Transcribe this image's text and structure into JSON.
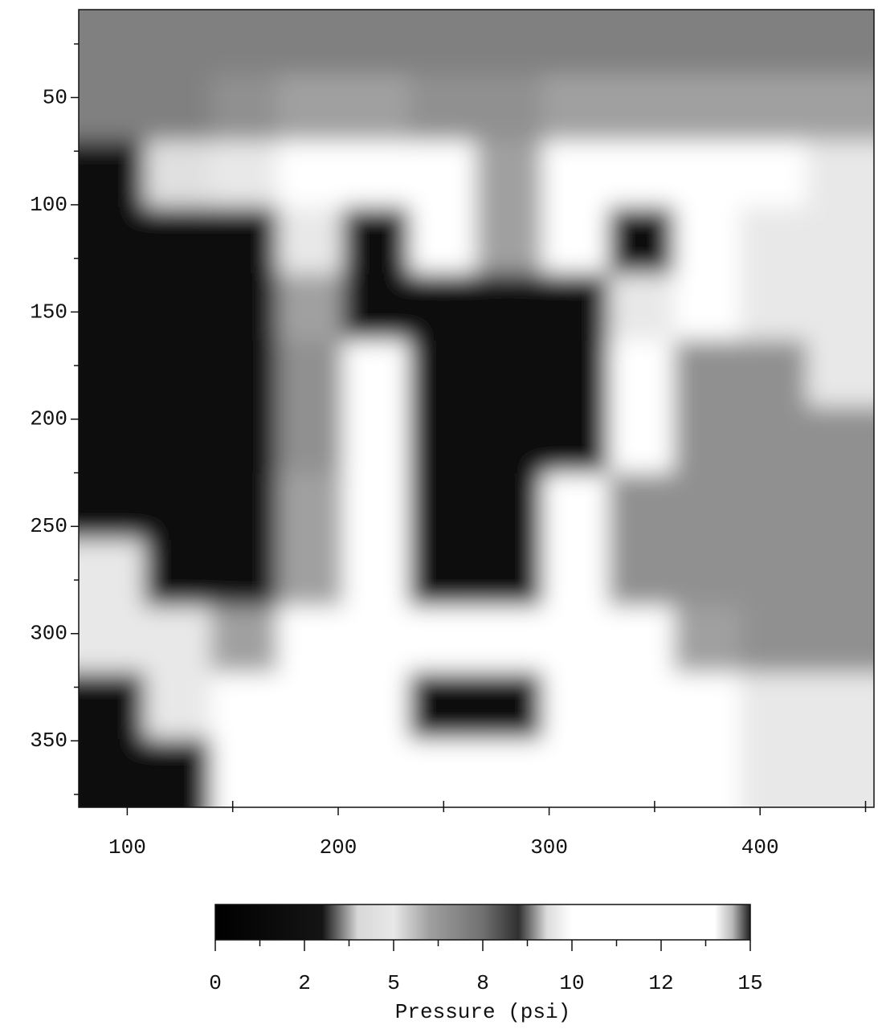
{
  "chart_data": {
    "type": "heatmap",
    "x": [
      93,
      124,
      156,
      187,
      218,
      250,
      281,
      313,
      344,
      375,
      407,
      438
    ],
    "y": [
      24,
      55,
      86,
      117,
      148,
      179,
      210,
      241,
      272,
      303,
      334,
      365
    ],
    "z": [
      [
        7,
        7,
        7,
        7,
        7,
        7,
        7,
        7,
        7,
        7,
        7,
        7
      ],
      [
        7,
        7,
        6.5,
        6,
        6,
        6.5,
        6.5,
        6,
        6,
        6,
        6,
        6
      ],
      [
        2,
        4.5,
        5,
        11,
        11,
        11,
        6,
        11,
        11,
        11,
        11,
        5
      ],
      [
        1,
        1,
        2,
        5,
        1.5,
        11,
        6,
        11,
        1.5,
        11,
        5,
        5
      ],
      [
        1,
        1,
        1.5,
        6,
        1,
        1,
        1,
        1,
        5,
        11,
        5,
        5
      ],
      [
        1,
        1,
        1,
        6.5,
        11,
        1,
        1,
        1,
        11,
        6.5,
        6.5,
        5
      ],
      [
        1,
        1,
        1,
        6.5,
        11,
        1,
        1,
        1,
        11,
        6.5,
        6.5,
        6.5
      ],
      [
        1.5,
        1,
        1.5,
        6,
        11,
        1,
        1,
        11,
        6.5,
        6.5,
        6.5,
        6.5
      ],
      [
        5,
        2,
        2,
        6,
        11,
        1,
        1,
        11,
        6.5,
        6.5,
        6.5,
        6.5
      ],
      [
        5,
        5,
        6,
        11,
        11,
        11,
        11,
        11,
        11,
        6,
        6.5,
        6.5
      ],
      [
        2,
        5,
        11,
        11,
        11,
        1.5,
        1.5,
        11,
        11,
        11,
        5,
        5
      ],
      [
        1,
        1.5,
        11,
        11,
        11,
        11,
        11,
        11,
        11,
        11,
        5,
        5
      ]
    ],
    "xlim": [
      77,
      454
    ],
    "ylim": [
      381,
      9
    ],
    "xticks": [
      100,
      200,
      300,
      400
    ],
    "xminor": [
      150,
      250,
      350,
      450
    ],
    "yticks": [
      50,
      100,
      150,
      200,
      250,
      300,
      350
    ],
    "yminor": [
      25,
      75,
      125,
      175,
      225,
      275,
      325,
      375
    ],
    "colormap": [
      {
        "value": 0,
        "color": "#000000"
      },
      {
        "value": 3,
        "color": "#141414"
      },
      {
        "value": 4,
        "color": "#d8d8d8"
      },
      {
        "value": 5,
        "color": "#e8e8e8"
      },
      {
        "value": 6,
        "color": "#a0a0a0"
      },
      {
        "value": 7.5,
        "color": "#707070"
      },
      {
        "value": 8.5,
        "color": "#303030"
      },
      {
        "value": 9.3,
        "color": "#dcdcdc"
      },
      {
        "value": 10,
        "color": "#ffffff"
      },
      {
        "value": 14,
        "color": "#ffffff"
      },
      {
        "value": 14.5,
        "color": "#b8b8b8"
      },
      {
        "value": 15,
        "color": "#202020"
      }
    ],
    "colorbar": {
      "label": "Pressure (psi)",
      "lim": [
        0,
        15
      ],
      "ticks": [
        0,
        {
          "value": 2.5,
          "label": "2"
        },
        5,
        {
          "value": 7.5,
          "label": "8"
        },
        10,
        {
          "value": 12.5,
          "label": "12"
        },
        15
      ],
      "minor": [
        1.25,
        3.75,
        6.25,
        8.75,
        11.25,
        13.75
      ]
    }
  }
}
